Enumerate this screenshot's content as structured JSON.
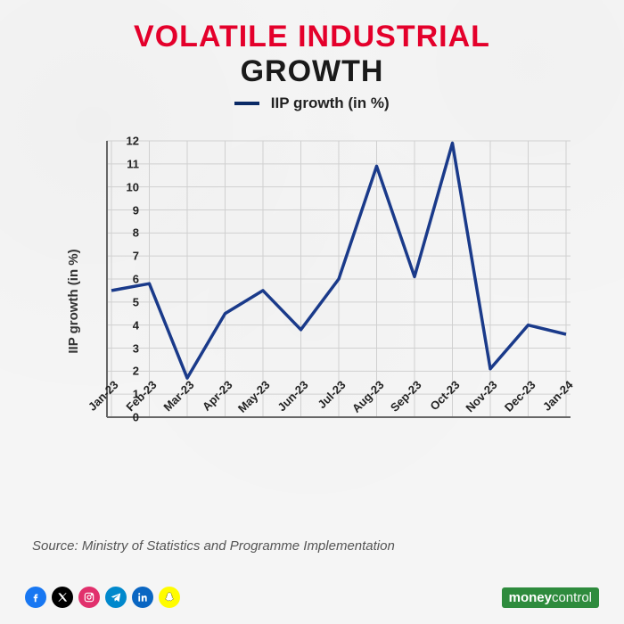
{
  "title": {
    "line1": "VOLATILE INDUSTRIAL",
    "line2": "GROWTH",
    "line1_color": "#e4002b",
    "line2_color": "#1a1a1a",
    "fontsize": 34
  },
  "legend": {
    "label": "IIP growth (in %)",
    "color": "#0a2a66",
    "fontsize": 17
  },
  "chart": {
    "type": "line",
    "y_axis_label": "IIP growth (in %)",
    "categories": [
      "Jan-23",
      "Feb-23",
      "Mar-23",
      "Apr-23",
      "May-23",
      "Jun-23",
      "Jul-23",
      "Aug-23",
      "Sep-23",
      "Oct-23",
      "Nov-23",
      "Dec-23",
      "Jan-24"
    ],
    "values": [
      5.5,
      5.8,
      1.7,
      4.5,
      5.5,
      3.8,
      6.0,
      10.9,
      6.1,
      11.9,
      2.1,
      4.0,
      3.6
    ],
    "line_color": "#1a3a8a",
    "line_width": 3.5,
    "ylim": [
      0,
      12
    ],
    "ytick_step": 1,
    "grid_color": "#d0d0d0",
    "axis_color": "#666666",
    "background_color": "#f5f5f5",
    "tick_fontsize": 13,
    "label_fontsize": 15
  },
  "source": "Source: Ministry of Statistics and Programme Implementation",
  "socials": {
    "facebook": "#1877f2",
    "x": "#000000",
    "instagram": "#e1306c",
    "telegram": "#0088cc",
    "linkedin": "#0a66c2",
    "snapchat": "#fffc00"
  },
  "brand": {
    "part1": "money",
    "part2": "control",
    "bg": "#2e8b3d"
  }
}
